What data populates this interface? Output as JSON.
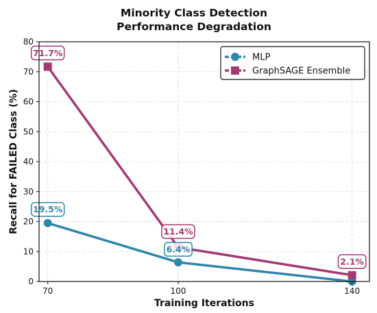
{
  "chart_data": {
    "type": "line",
    "title_line1": "Minority Class Detection",
    "title_line2": "Performance Degradation",
    "xlabel": "Training Iterations",
    "ylabel": "Recall for FAILED Class (%)",
    "x": [
      70,
      100,
      140
    ],
    "x_ticks": [
      "70",
      "100",
      "140"
    ],
    "xlim": [
      68,
      144
    ],
    "ylim": [
      0,
      80
    ],
    "y_ticks": [
      "0",
      "10",
      "20",
      "30",
      "40",
      "50",
      "60",
      "70",
      "80"
    ],
    "grid": true,
    "legend_position": "top-right",
    "series": [
      {
        "name": "MLP",
        "values": [
          19.5,
          6.4,
          0.0
        ],
        "labels": [
          "19.5%",
          "6.4%",
          ""
        ],
        "color": "#2e86ab",
        "marker": "circle"
      },
      {
        "name": "GraphSAGE Ensemble",
        "values": [
          71.7,
          11.4,
          2.1
        ],
        "labels": [
          "71.7%",
          "11.4%",
          "2.1%"
        ],
        "color": "#a23b72",
        "marker": "square"
      }
    ]
  }
}
